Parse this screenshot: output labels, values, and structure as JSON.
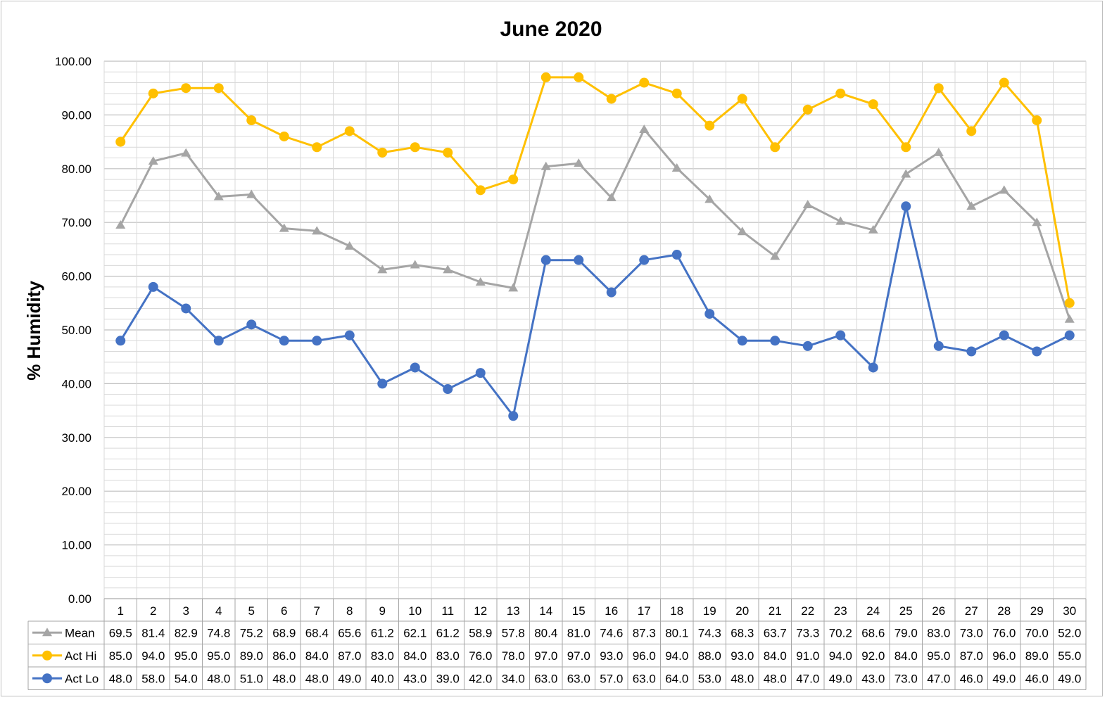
{
  "chart_data": {
    "type": "line",
    "title": "June 2020",
    "xlabel": "",
    "ylabel": "% Humidity",
    "ylim": [
      0,
      100
    ],
    "y_major_step": 10,
    "y_minor_step": 2,
    "y_tick_decimals": 2,
    "grid": true,
    "legend": "data-table",
    "categories": [
      "1",
      "2",
      "3",
      "4",
      "5",
      "6",
      "7",
      "8",
      "9",
      "10",
      "11",
      "12",
      "13",
      "14",
      "15",
      "16",
      "17",
      "18",
      "19",
      "20",
      "21",
      "22",
      "23",
      "24",
      "25",
      "26",
      "27",
      "28",
      "29",
      "30"
    ],
    "series": [
      {
        "name": "Mean",
        "color": "#a5a5a5",
        "marker": "triangle",
        "values": [
          69.5,
          81.4,
          82.9,
          74.8,
          75.2,
          68.9,
          68.4,
          65.6,
          61.2,
          62.1,
          61.2,
          58.9,
          57.8,
          80.4,
          81.0,
          74.6,
          87.3,
          80.1,
          74.3,
          68.3,
          63.7,
          73.3,
          70.2,
          68.6,
          79.0,
          83.0,
          73.0,
          76.0,
          70.0,
          52.0
        ]
      },
      {
        "name": "Act Hi",
        "color": "#ffc000",
        "marker": "circle",
        "values": [
          85.0,
          94.0,
          95.0,
          95.0,
          89.0,
          86.0,
          84.0,
          87.0,
          83.0,
          84.0,
          83.0,
          76.0,
          78.0,
          97.0,
          97.0,
          93.0,
          96.0,
          94.0,
          88.0,
          93.0,
          84.0,
          91.0,
          94.0,
          92.0,
          84.0,
          95.0,
          87.0,
          96.0,
          89.0,
          55.0
        ]
      },
      {
        "name": "Act Lo",
        "color": "#4472c4",
        "marker": "circle",
        "values": [
          48.0,
          58.0,
          54.0,
          48.0,
          51.0,
          48.0,
          48.0,
          49.0,
          40.0,
          43.0,
          39.0,
          42.0,
          34.0,
          63.0,
          63.0,
          57.0,
          63.0,
          64.0,
          53.0,
          48.0,
          48.0,
          47.0,
          49.0,
          43.0,
          73.0,
          47.0,
          46.0,
          49.0,
          46.0,
          49.0
        ]
      }
    ]
  }
}
